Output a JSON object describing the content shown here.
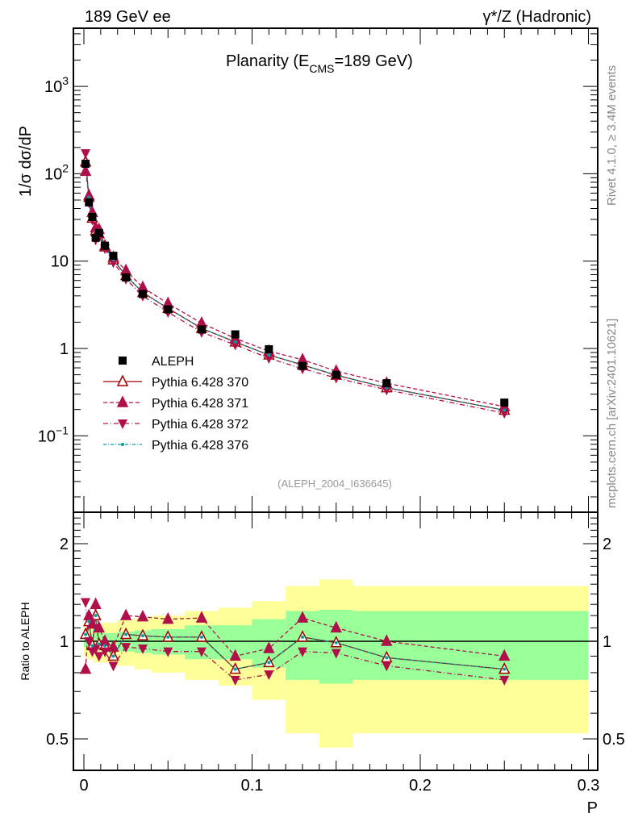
{
  "header": {
    "left": "189 GeV ee",
    "right": "γ*/Z (Hadronic)"
  },
  "side": {
    "top": "Rivet 4.1.0, ≥ 3.4M events",
    "bottom": "mcplots.cern.ch [arXiv:2401.10621]"
  },
  "chart_data": [
    {
      "type": "line",
      "title": "Planarity (E_CMS=189 GeV)",
      "title_main": "Planarity (E",
      "title_sub": "CMS",
      "title_end": "=189 GeV)",
      "ylabel": "1/σ  dσ/dP",
      "xlabel": "P",
      "yscale": "log",
      "ylim": [
        0.013,
        4600
      ],
      "xlim": [
        -0.006,
        0.3
      ],
      "yticks": [
        {
          "v": 1000,
          "b": "10",
          "e": "3"
        },
        {
          "v": 100,
          "b": "10",
          "e": "2"
        },
        {
          "v": 10,
          "t": "10"
        },
        {
          "v": 1,
          "t": "1"
        },
        {
          "v": 0.1,
          "b": "10",
          "e": "−1"
        }
      ],
      "watermark": "(ALEPH_2004_I636645)",
      "x": [
        0.001,
        0.003,
        0.005,
        0.007,
        0.009,
        0.0125,
        0.0175,
        0.025,
        0.035,
        0.05,
        0.07,
        0.09,
        0.11,
        0.13,
        0.15,
        0.18,
        0.25
      ],
      "data": {
        "name": "ALEPH",
        "values": [
          130,
          47,
          32,
          18.5,
          21,
          15,
          11.5,
          6.5,
          4.2,
          2.8,
          1.65,
          1.45,
          0.98,
          0.63,
          0.5,
          0.4,
          0.24
        ]
      },
      "legend": [
        "ALEPH",
        "Pythia 6.428 370",
        "Pythia 6.428 371",
        "Pythia 6.428 372",
        "Pythia 6.428 376"
      ],
      "legend_placement": "middle-left"
    },
    {
      "type": "line",
      "ylabel": "Ratio to ALEPH",
      "yscale": "log",
      "ylim": [
        0.4,
        2.5
      ],
      "yticks": [
        {
          "v": 2,
          "t": "2"
        },
        {
          "v": 1,
          "t": "1"
        },
        {
          "v": 0.5,
          "t": "0.5"
        }
      ],
      "xticks": [
        {
          "v": 0,
          "t": "0"
        },
        {
          "v": 0.1,
          "t": "0.1"
        },
        {
          "v": 0.2,
          "t": "0.2"
        },
        {
          "v": 0.3,
          "t": "0.3"
        }
      ],
      "bin_edges": [
        0,
        0.002,
        0.004,
        0.006,
        0.008,
        0.01,
        0.015,
        0.02,
        0.03,
        0.04,
        0.06,
        0.08,
        0.1,
        0.12,
        0.14,
        0.16,
        0.2,
        0.3
      ],
      "band_total": {
        "up": [
          1.1,
          1.12,
          1.12,
          1.13,
          1.13,
          1.14,
          1.14,
          1.16,
          1.18,
          1.2,
          1.24,
          1.27,
          1.33,
          1.48,
          1.55,
          1.48,
          1.48
        ],
        "down": [
          0.9,
          0.88,
          0.88,
          0.86,
          0.86,
          0.86,
          0.86,
          0.84,
          0.82,
          0.8,
          0.76,
          0.73,
          0.66,
          0.52,
          0.47,
          0.52,
          0.52
        ]
      },
      "band_stat": {
        "up": [
          1.04,
          1.05,
          1.05,
          1.06,
          1.06,
          1.06,
          1.06,
          1.07,
          1.08,
          1.09,
          1.12,
          1.12,
          1.17,
          1.24,
          1.25,
          1.24,
          1.24
        ],
        "down": [
          0.96,
          0.95,
          0.95,
          0.94,
          0.94,
          0.94,
          0.94,
          0.93,
          0.92,
          0.91,
          0.88,
          0.88,
          0.83,
          0.76,
          0.74,
          0.76,
          0.76
        ]
      },
      "series": [
        {
          "name": "Pythia 6.428 370",
          "color": "#a00000",
          "marker": "open-up",
          "dash": "",
          "values": [
            1.05,
            1.15,
            0.97,
            1.2,
            0.98,
            0.97,
            0.9,
            1.05,
            1.04,
            1.03,
            1.03,
            0.82,
            0.86,
            1.03,
            0.99,
            0.89,
            0.82
          ]
        },
        {
          "name": "Pythia 6.428 371",
          "color": "#b0104a",
          "marker": "up",
          "dash": "5,3",
          "values": [
            0.82,
            1.2,
            1.13,
            1.3,
            1.1,
            1.0,
            0.96,
            1.2,
            1.19,
            1.17,
            1.18,
            0.9,
            0.95,
            1.18,
            1.1,
            1.0,
            0.9
          ]
        },
        {
          "name": "Pythia 6.428 372",
          "color": "#b0104a",
          "marker": "down",
          "dash": "6,3,1,3",
          "values": [
            1.32,
            1.0,
            0.93,
            0.95,
            0.9,
            0.93,
            0.84,
            0.96,
            0.95,
            0.93,
            0.93,
            0.76,
            0.79,
            0.93,
            0.92,
            0.84,
            0.76
          ]
        },
        {
          "name": "Pythia 6.428 376",
          "color": "#00a0a0",
          "marker": "dot",
          "dash": "4,2,1,2",
          "values": [
            1.05,
            1.15,
            0.97,
            1.2,
            0.98,
            0.97,
            0.9,
            1.05,
            1.04,
            1.03,
            1.03,
            0.82,
            0.86,
            1.03,
            0.99,
            0.89,
            0.82
          ]
        }
      ]
    }
  ]
}
